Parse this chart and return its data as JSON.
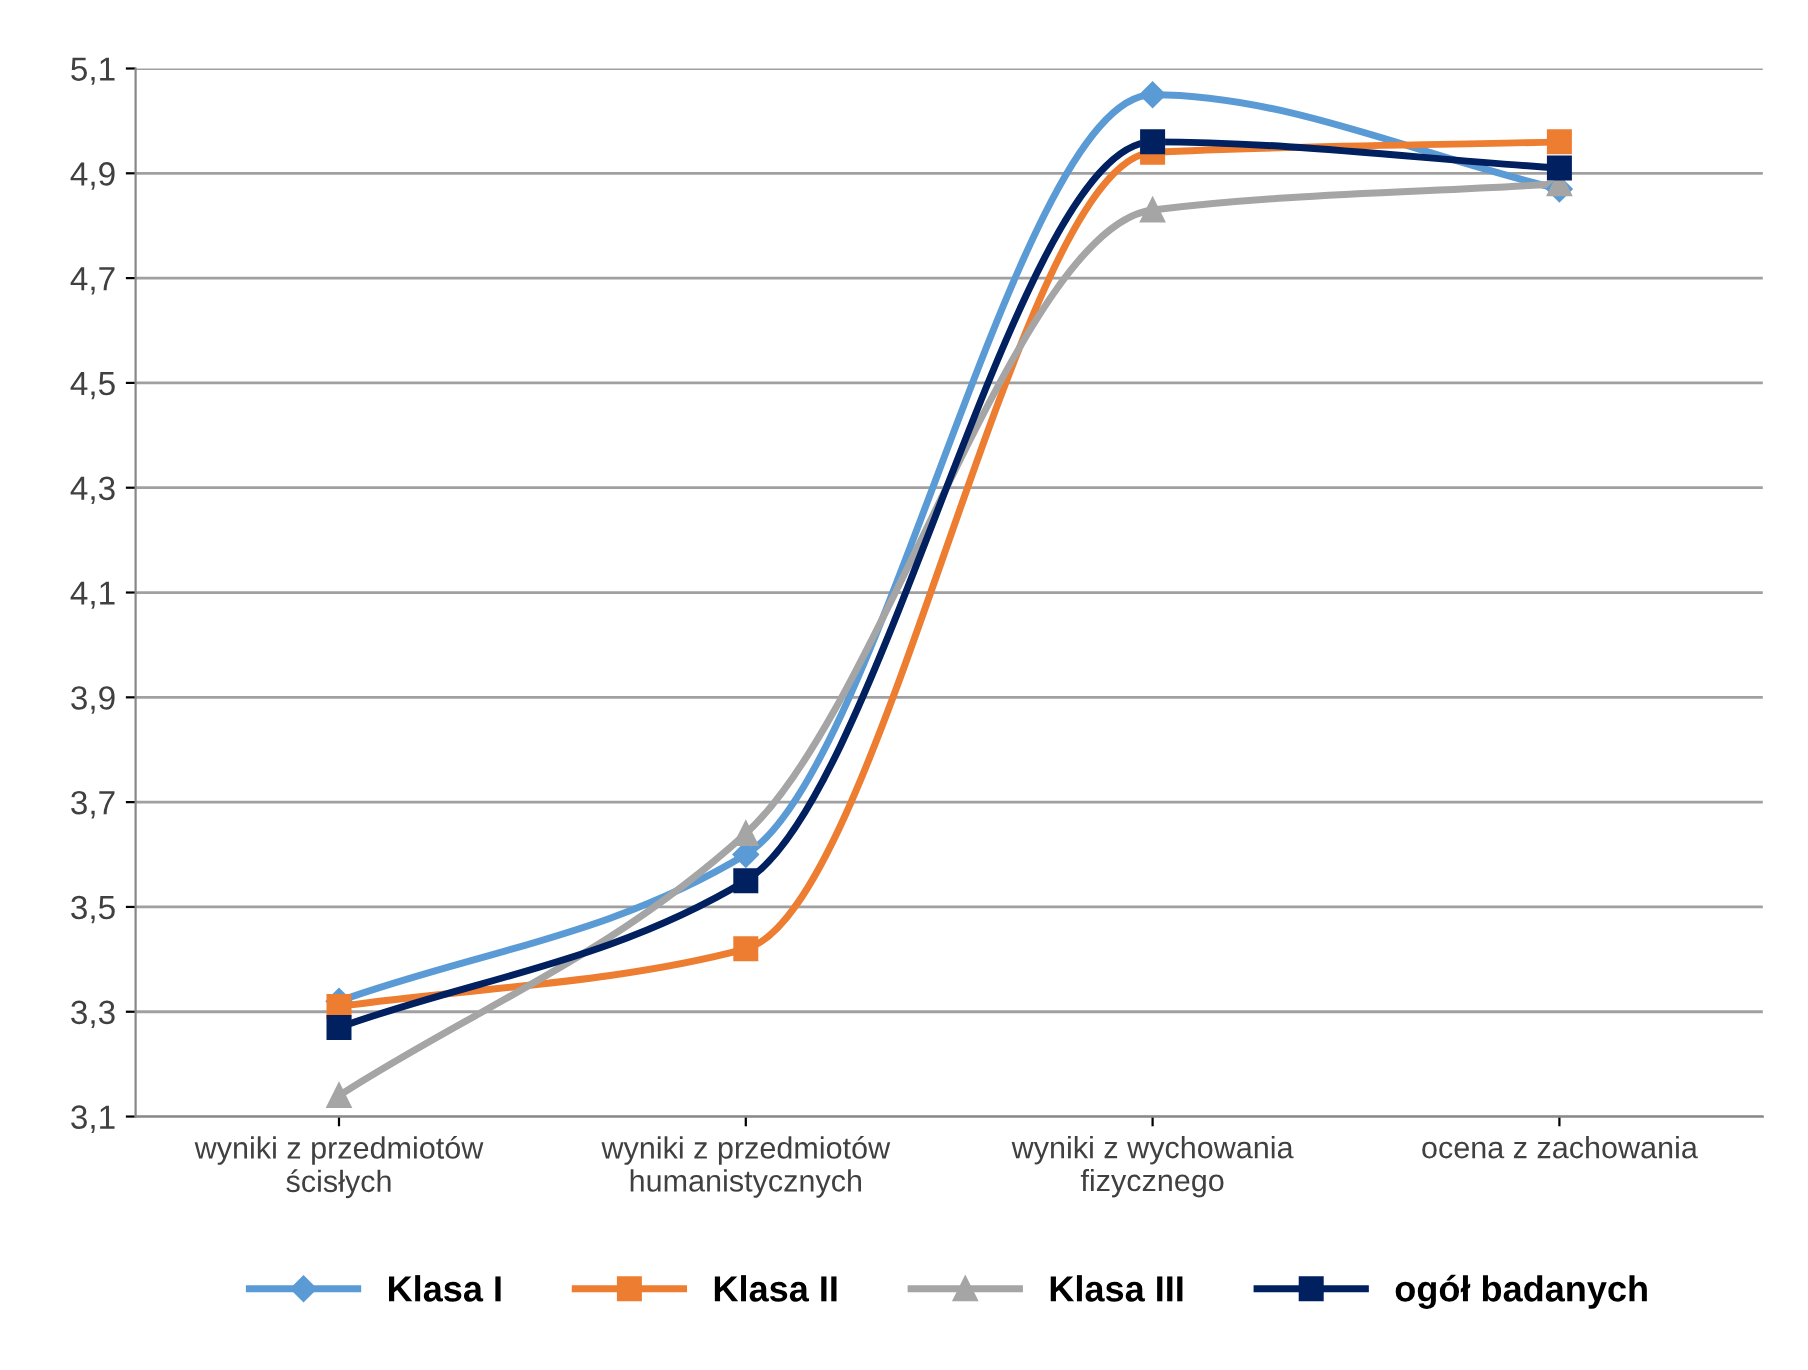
{
  "chart_data": {
    "type": "line",
    "categories": [
      "wyniki z przedmiotów\nścisłych",
      "wyniki z przedmiotów\nhumanistycznych",
      "wyniki z wychowania\nfizycznego",
      "ocena z zachowania"
    ],
    "series": [
      {
        "name": "Klasa I",
        "color": "#5b9bd5",
        "marker": "diamond",
        "values": [
          3.32,
          3.6,
          5.05,
          4.87
        ]
      },
      {
        "name": "Klasa II",
        "color": "#ed7d31",
        "marker": "square",
        "values": [
          3.31,
          3.42,
          4.94,
          4.96
        ]
      },
      {
        "name": "Klasa III",
        "color": "#a5a5a5",
        "marker": "triangle",
        "values": [
          3.14,
          3.64,
          4.83,
          4.88
        ]
      },
      {
        "name": "ogół badanych",
        "color": "#002060",
        "marker": "square",
        "values": [
          3.27,
          3.55,
          4.96,
          4.91
        ]
      }
    ],
    "ylim": [
      3.1,
      5.1
    ],
    "yticks": [
      {
        "value": 3.1,
        "label": "3,1"
      },
      {
        "value": 3.3,
        "label": "3,3"
      },
      {
        "value": 3.5,
        "label": "3,5"
      },
      {
        "value": 3.7,
        "label": "3,7"
      },
      {
        "value": 3.9,
        "label": "3,9"
      },
      {
        "value": 4.1,
        "label": "4,1"
      },
      {
        "value": 4.3,
        "label": "4,3"
      },
      {
        "value": 4.5,
        "label": "4,5"
      },
      {
        "value": 4.7,
        "label": "4,7"
      },
      {
        "value": 4.9,
        "label": "4,9"
      },
      {
        "value": 5.1,
        "label": "5,1"
      }
    ],
    "grid": "y",
    "legend": "bottom",
    "line_style": "solid"
  }
}
